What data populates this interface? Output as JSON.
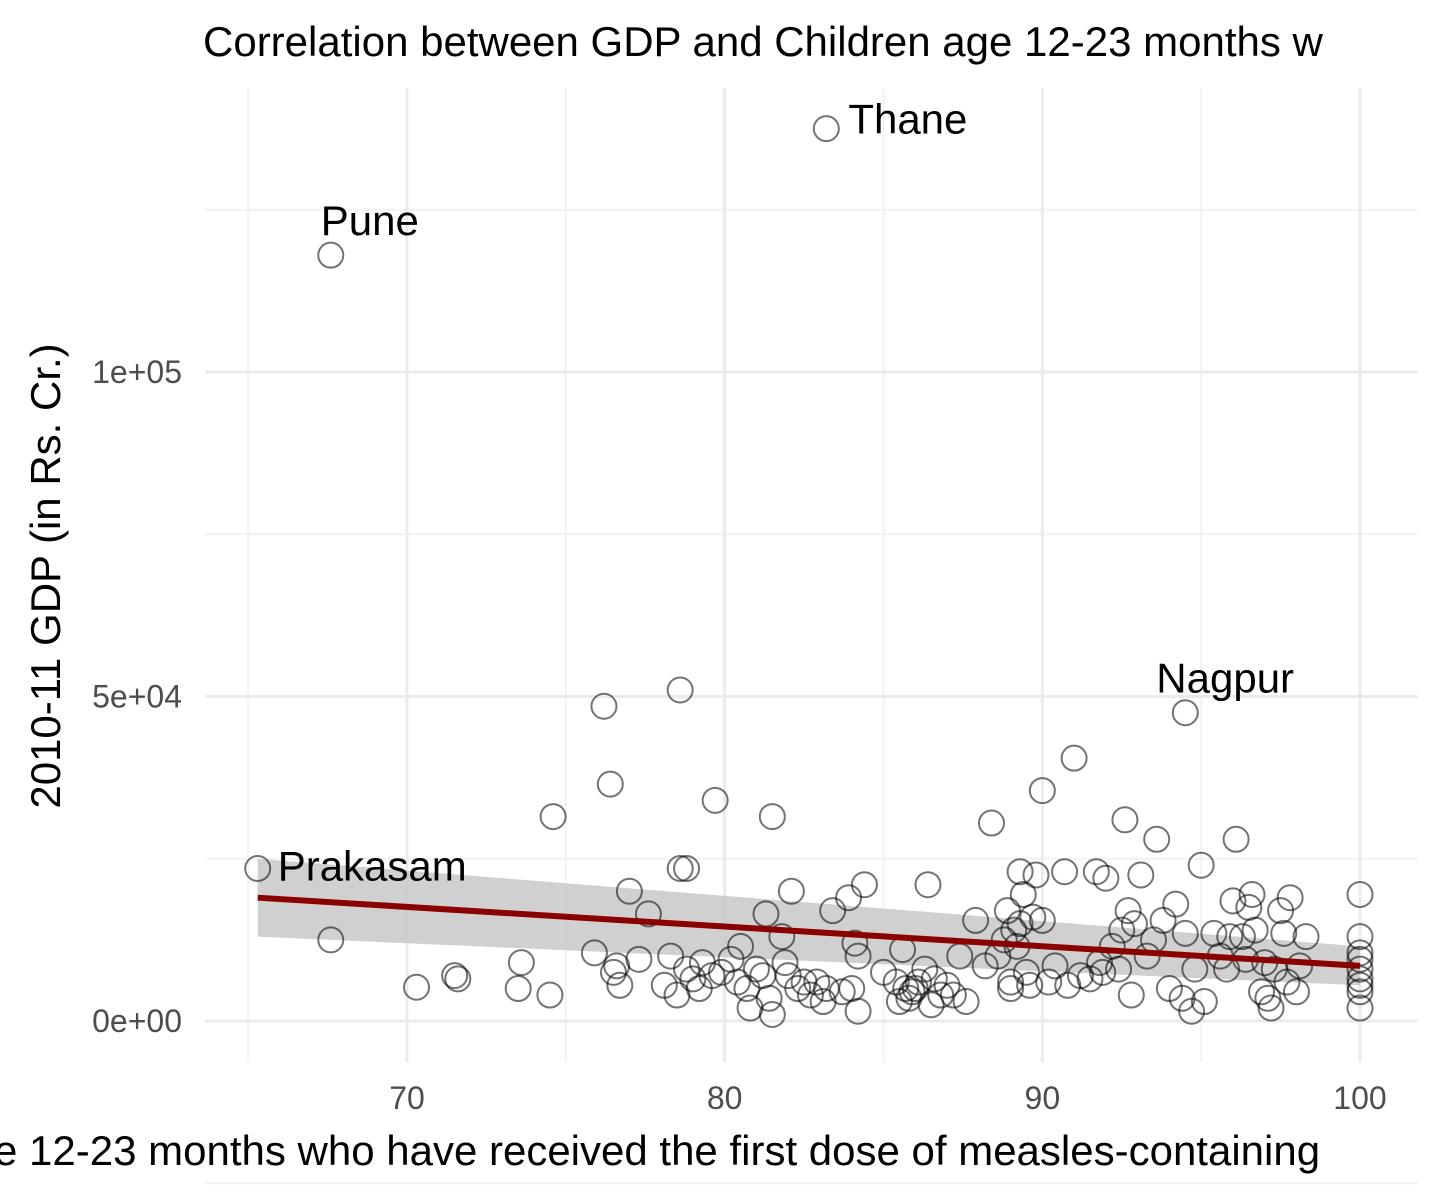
{
  "chart_data": {
    "type": "scatter",
    "title": "Correlation between GDP and Children age 12-23 months w",
    "xlabel": "e 12-23 months who have received the first dose of measles-containing",
    "ylabel": "2010-11 GDP (in Rs. Cr.)",
    "xlim": [
      64,
      102
    ],
    "ylim": [
      -5000,
      145000
    ],
    "x_ticks": [
      70,
      80,
      90,
      100
    ],
    "x_tick_labels": [
      "70",
      "80",
      "90",
      "100"
    ],
    "y_ticks": [
      0,
      50000,
      100000
    ],
    "y_tick_labels": [
      "0e+00",
      "5e+04",
      "1e+05"
    ],
    "grid": true,
    "points": [
      [
        65.3,
        23500
      ],
      [
        67.6,
        118000
      ],
      [
        83.2,
        137500
      ],
      [
        94.5,
        47500
      ],
      [
        67.6,
        12500
      ],
      [
        70.3,
        5200
      ],
      [
        71.5,
        7000
      ],
      [
        71.6,
        6500
      ],
      [
        73.5,
        5000
      ],
      [
        73.6,
        9000
      ],
      [
        74.5,
        4000
      ],
      [
        74.6,
        31500
      ],
      [
        75.9,
        10500
      ],
      [
        76.2,
        48500
      ],
      [
        76.4,
        36500
      ],
      [
        76.5,
        7500
      ],
      [
        76.6,
        8500
      ],
      [
        76.7,
        5500
      ],
      [
        77.0,
        20000
      ],
      [
        77.3,
        9500
      ],
      [
        77.6,
        16500
      ],
      [
        78.1,
        5500
      ],
      [
        78.3,
        10000
      ],
      [
        78.5,
        4000
      ],
      [
        78.6,
        51000
      ],
      [
        78.6,
        23500
      ],
      [
        78.8,
        23500
      ],
      [
        78.8,
        8000
      ],
      [
        79.0,
        6500
      ],
      [
        79.2,
        5000
      ],
      [
        79.3,
        9000
      ],
      [
        79.6,
        7000
      ],
      [
        79.7,
        34000
      ],
      [
        79.9,
        7500
      ],
      [
        80.2,
        9500
      ],
      [
        80.4,
        6000
      ],
      [
        80.5,
        11500
      ],
      [
        80.7,
        5000
      ],
      [
        80.8,
        2000
      ],
      [
        81.0,
        8000
      ],
      [
        81.2,
        7000
      ],
      [
        81.3,
        16500
      ],
      [
        81.4,
        3500
      ],
      [
        81.5,
        31500
      ],
      [
        81.5,
        1000
      ],
      [
        81.8,
        13000
      ],
      [
        81.9,
        9000
      ],
      [
        82.0,
        7000
      ],
      [
        82.1,
        20000
      ],
      [
        82.3,
        5000
      ],
      [
        82.5,
        6000
      ],
      [
        82.7,
        4000
      ],
      [
        82.9,
        6000
      ],
      [
        83.1,
        3000
      ],
      [
        83.2,
        5000
      ],
      [
        83.4,
        17000
      ],
      [
        83.7,
        4500
      ],
      [
        83.9,
        19000
      ],
      [
        84.0,
        5000
      ],
      [
        84.1,
        12000
      ],
      [
        84.2,
        1500
      ],
      [
        84.2,
        10000
      ],
      [
        84.4,
        21000
      ],
      [
        85.0,
        7500
      ],
      [
        85.4,
        6000
      ],
      [
        85.5,
        3000
      ],
      [
        85.6,
        11000
      ],
      [
        85.7,
        5000
      ],
      [
        85.8,
        3500
      ],
      [
        85.9,
        4500
      ],
      [
        86.0,
        5000
      ],
      [
        86.1,
        6000
      ],
      [
        86.3,
        8000
      ],
      [
        86.4,
        21000
      ],
      [
        86.5,
        2500
      ],
      [
        86.6,
        6500
      ],
      [
        86.8,
        4000
      ],
      [
        87.0,
        5500
      ],
      [
        87.2,
        4000
      ],
      [
        87.4,
        10000
      ],
      [
        87.6,
        3000
      ],
      [
        87.9,
        15500
      ],
      [
        88.2,
        8500
      ],
      [
        88.4,
        30500
      ],
      [
        88.6,
        10000
      ],
      [
        88.8,
        12500
      ],
      [
        88.9,
        17000
      ],
      [
        89.0,
        5000
      ],
      [
        89.0,
        6000
      ],
      [
        89.1,
        14000
      ],
      [
        89.2,
        11500
      ],
      [
        89.3,
        15000
      ],
      [
        89.3,
        23000
      ],
      [
        89.4,
        19500
      ],
      [
        89.5,
        7500
      ],
      [
        89.6,
        5500
      ],
      [
        89.7,
        16000
      ],
      [
        89.8,
        22500
      ],
      [
        90.0,
        35500
      ],
      [
        90.0,
        15500
      ],
      [
        90.2,
        6000
      ],
      [
        90.4,
        8500
      ],
      [
        90.7,
        23000
      ],
      [
        90.8,
        5500
      ],
      [
        91.0,
        40500
      ],
      [
        91.2,
        7000
      ],
      [
        91.5,
        6500
      ],
      [
        91.7,
        23000
      ],
      [
        91.8,
        9000
      ],
      [
        91.9,
        7500
      ],
      [
        92.0,
        22000
      ],
      [
        92.2,
        11500
      ],
      [
        92.4,
        8000
      ],
      [
        92.5,
        14000
      ],
      [
        92.6,
        31000
      ],
      [
        92.7,
        17000
      ],
      [
        92.8,
        4000
      ],
      [
        92.9,
        15000
      ],
      [
        93.1,
        22500
      ],
      [
        93.3,
        10000
      ],
      [
        93.5,
        12500
      ],
      [
        93.6,
        28000
      ],
      [
        93.8,
        15500
      ],
      [
        94.0,
        5000
      ],
      [
        94.2,
        18000
      ],
      [
        94.4,
        3500
      ],
      [
        94.5,
        13500
      ],
      [
        94.7,
        1500
      ],
      [
        94.8,
        8000
      ],
      [
        95.0,
        24000
      ],
      [
        95.1,
        3000
      ],
      [
        95.4,
        13500
      ],
      [
        95.6,
        10000
      ],
      [
        95.8,
        8000
      ],
      [
        95.9,
        13000
      ],
      [
        96.0,
        18500
      ],
      [
        96.1,
        28000
      ],
      [
        96.3,
        13000
      ],
      [
        96.4,
        9500
      ],
      [
        96.5,
        17500
      ],
      [
        96.6,
        19500
      ],
      [
        96.7,
        14000
      ],
      [
        96.9,
        4500
      ],
      [
        97.0,
        9000
      ],
      [
        97.1,
        3500
      ],
      [
        97.2,
        2000
      ],
      [
        97.3,
        8000
      ],
      [
        97.5,
        17000
      ],
      [
        97.6,
        13500
      ],
      [
        97.7,
        6000
      ],
      [
        97.8,
        19000
      ],
      [
        98.0,
        4500
      ],
      [
        98.1,
        8500
      ],
      [
        98.3,
        13000
      ],
      [
        100,
        19500
      ],
      [
        100,
        13000
      ],
      [
        100,
        10500
      ],
      [
        100,
        9500
      ],
      [
        100,
        8000
      ],
      [
        100,
        6500
      ],
      [
        100,
        5500
      ],
      [
        100,
        4500
      ],
      [
        100,
        2000
      ]
    ],
    "labeled_points": [
      {
        "label": "Prakasam",
        "x": 65.3,
        "y": 23500
      },
      {
        "label": "Pune",
        "x": 67.6,
        "y": 118000
      },
      {
        "label": "Thane",
        "x": 83.2,
        "y": 137500
      },
      {
        "label": "Nagpur",
        "x": 94.5,
        "y": 47500
      }
    ],
    "trend_line": {
      "x": [
        65.3,
        100
      ],
      "y": [
        19000,
        8500
      ],
      "color": "#8b0000",
      "band_color": "#c8c8c8",
      "band_lower": [
        13000,
        5500
      ],
      "band_upper": [
        25000,
        11500
      ]
    }
  }
}
